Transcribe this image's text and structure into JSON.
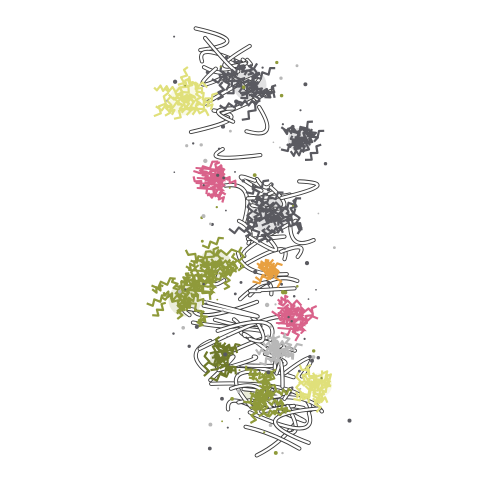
{
  "image": {
    "subject": "molecular-structure-cartoon",
    "background": "#ffffff"
  },
  "colors": {
    "backbone_light": "#ffffff",
    "backbone_outline": "#3a3a3a",
    "dark_gray": "#5a5a60",
    "olive": "#8f9a3a",
    "olive_dark": "#6f7a2a",
    "pale_yellow": "#e0e07a",
    "pink": "#d9628a",
    "orange": "#e8a040",
    "light_gray": "#b8b8b8"
  }
}
